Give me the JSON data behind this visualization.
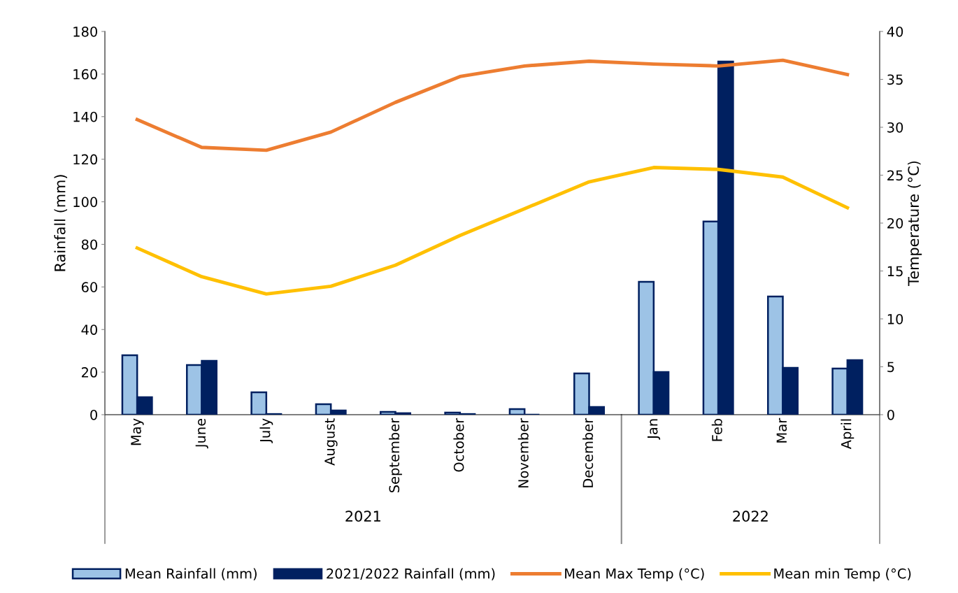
{
  "chart_data": {
    "type": "bar",
    "ylabel": "Rainfall (mm)",
    "y2label": "Temperature (°C)",
    "categories": [
      "May",
      "June",
      "July",
      "August",
      "September",
      "October",
      "November",
      "December",
      "Jan",
      "Feb",
      "Mar",
      "April"
    ],
    "series": [
      {
        "name": "Mean Rainfall (mm)",
        "color": "#9dc3e6",
        "values": [
          27.9,
          23.3,
          10.5,
          4.9,
          1.3,
          1.0,
          2.6,
          19.4,
          62.4,
          90.7,
          55.5,
          21.7
        ]
      },
      {
        "name": "2021/2022 Rainfall (mm)",
        "color": "#002060",
        "values": [
          8.2,
          25.3,
          0.3,
          2.0,
          0.7,
          0.3,
          0,
          3.6,
          20.0,
          165.9,
          22.0,
          25.6
        ]
      },
      {
        "name": "Mean Max Temp (°C)",
        "type": "line",
        "axis": "y2",
        "color": "#ed7d31",
        "values": [
          30.8,
          27.9,
          27.6,
          29.5,
          32.6,
          35.3,
          36.4,
          36.9,
          36.6,
          36.4,
          37.0,
          35.5
        ]
      },
      {
        "name": "Mean min Temp (°C)",
        "type": "line",
        "axis": "y2",
        "color": "#ffc000",
        "values": [
          17.4,
          14.4,
          12.6,
          13.4,
          15.6,
          18.7,
          21.5,
          24.3,
          25.8,
          25.6,
          24.8,
          21.6
        ]
      }
    ],
    "ylim": [
      0,
      180
    ],
    "yticks": [
      0,
      20,
      40,
      60,
      80,
      100,
      120,
      140,
      160,
      180
    ],
    "y2lim": [
      0,
      40
    ],
    "y2ticks": [
      0,
      5,
      10,
      15,
      20,
      25,
      30,
      35,
      40
    ],
    "annotations": [
      "2021",
      "2022"
    ],
    "legend": "bottom",
    "grid": false,
    "marker": "none",
    "line_style": "solid"
  }
}
